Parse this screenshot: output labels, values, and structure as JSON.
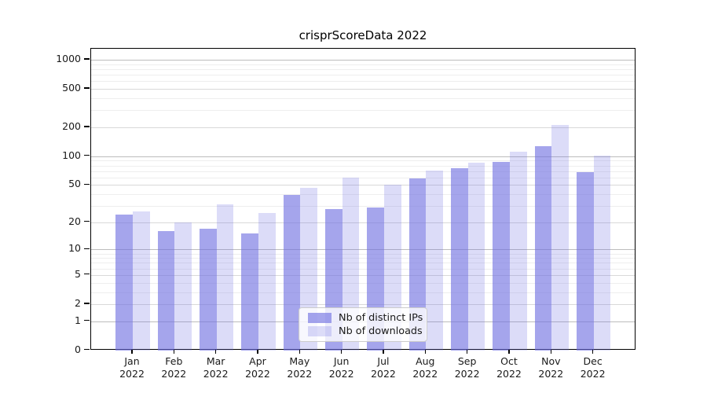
{
  "chart_data": {
    "type": "bar",
    "title": "crisprScoreData 2022",
    "categories": [
      "Jan 2022",
      "Feb 2022",
      "Mar 2022",
      "Apr 2022",
      "May 2022",
      "Jun 2022",
      "Jul 2022",
      "Aug 2022",
      "Sep 2022",
      "Oct 2022",
      "Nov 2022",
      "Dec 2022"
    ],
    "series": [
      {
        "name": "Nb of distinct IPs",
        "color": "rgba(110,110,224,0.62)",
        "values": [
          24,
          16,
          17,
          15,
          39,
          28,
          29,
          59,
          75,
          87,
          127,
          68
        ]
      },
      {
        "name": "Nb of downloads",
        "color": "rgba(110,110,224,0.24)",
        "values": [
          26,
          20,
          31,
          25,
          47,
          60,
          50,
          71,
          85,
          112,
          212,
          101
        ]
      }
    ],
    "y_scale": "log1p",
    "y_ticks": [
      1000,
      500,
      200,
      100,
      50,
      20,
      10,
      5,
      2,
      1,
      0
    ],
    "y_minor_gridlines": [
      900,
      800,
      700,
      600,
      400,
      300,
      90,
      80,
      70,
      60,
      40,
      30,
      9,
      8,
      7,
      6,
      4,
      3
    ],
    "ylim": [
      0,
      1300
    ],
    "grid": true,
    "legend_position": "lower center",
    "colors": {
      "bar_base": "#6e6ee0",
      "grid_major_dark": "#bdbdbd",
      "grid_major": "#d9d9d9",
      "grid_minor": "#eeeeee",
      "axis": "#000000",
      "text": "#1a1a1a"
    }
  }
}
